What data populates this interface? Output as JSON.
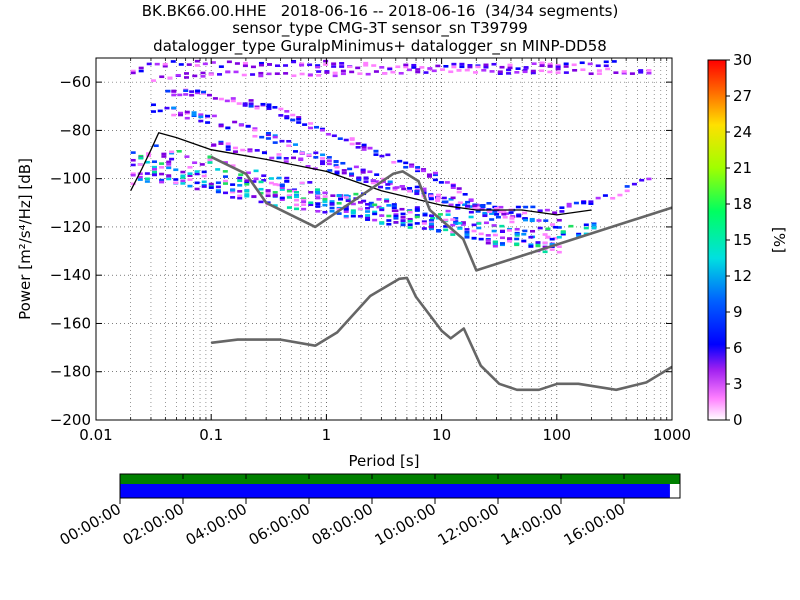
{
  "header": {
    "title_line1": "BK.BK66.00.HHE   2018-06-16 -- 2018-06-16  (34/34 segments)",
    "title_line2": "sensor_type CMG-3T sensor_sn T39799",
    "title_line3": "datalogger_type GuralpMinimus+ datalogger_sn MINP-DD58"
  },
  "chart_data": [
    {
      "type": "heatmap",
      "xlabel": "Period [s]",
      "ylabel": "Power [m²/s⁴/Hz] [dB]",
      "xscale": "log",
      "xlim": [
        0.01,
        1000
      ],
      "ylim": [
        -200,
        -50
      ],
      "x_ticks": [
        "0.01",
        "0.1",
        "1",
        "10",
        "100",
        "1000"
      ],
      "y_ticks": [
        "−60",
        "−80",
        "−100",
        "−120",
        "−140",
        "−160",
        "−180",
        "−200"
      ],
      "y_tick_values": [
        -60,
        -80,
        -100,
        -120,
        -140,
        -160,
        -180,
        -200
      ],
      "grid": true,
      "colorbar": {
        "label": "[%]",
        "range": [
          0,
          30
        ],
        "ticks": [
          "0",
          "3",
          "6",
          "9",
          "12",
          "15",
          "18",
          "21",
          "24",
          "27",
          "30"
        ]
      },
      "bands": [
        {
          "x": [
            0.02,
            0.03,
            0.04,
            0.1,
            1,
            5,
            10,
            30,
            100,
            300
          ],
          "y": [
            -55,
            -52,
            -52,
            -52,
            -52,
            -53,
            -53,
            -53,
            -52,
            -52
          ],
          "density": 5
        },
        {
          "x": [
            0.03,
            0.05,
            0.1,
            0.3,
            1,
            3,
            10,
            30,
            100,
            300,
            600
          ],
          "y": [
            -58,
            -57,
            -56,
            -56,
            -56,
            -55,
            -55,
            -55,
            -55,
            -55,
            -55
          ],
          "density": 4
        },
        {
          "x": [
            0.04,
            0.07,
            0.1,
            0.3,
            1,
            3,
            10,
            20,
            50
          ],
          "y": [
            -64,
            -64,
            -65,
            -70,
            -80,
            -90,
            -100,
            -110,
            -115
          ],
          "density": 6
        },
        {
          "x": [
            0.03,
            0.05,
            0.1,
            0.3,
            1,
            3,
            10,
            30,
            100
          ],
          "y": [
            -70,
            -72,
            -75,
            -82,
            -92,
            -100,
            -108,
            -116,
            -118
          ],
          "density": 7
        },
        {
          "x": [
            0.02,
            0.03,
            0.05,
            0.1,
            0.3,
            1,
            3,
            10,
            30,
            100,
            200
          ],
          "y": [
            -90,
            -88,
            -90,
            -93,
            -100,
            -105,
            -110,
            -115,
            -120,
            -122,
            -120
          ],
          "density": 10
        },
        {
          "x": [
            0.02,
            0.03,
            0.05,
            0.1,
            0.3,
            1,
            3,
            10,
            30,
            100
          ],
          "y": [
            -96,
            -94,
            -96,
            -100,
            -104,
            -108,
            -112,
            -118,
            -124,
            -126
          ],
          "density": 12
        },
        {
          "x": [
            0.02,
            0.03,
            0.05,
            0.1,
            0.3,
            1,
            3,
            10,
            30,
            100
          ],
          "y": [
            -100,
            -98,
            -100,
            -104,
            -108,
            -112,
            -116,
            -120,
            -126,
            -128
          ],
          "density": 9
        },
        {
          "x": [
            0.1,
            0.3,
            1,
            3,
            10,
            30,
            100,
            300,
            600
          ],
          "y": [
            -85,
            -90,
            -95,
            -102,
            -108,
            -113,
            -112,
            -106,
            -100
          ],
          "density": 6
        }
      ],
      "series": [
        {
          "x": [
            0.02,
            0.025,
            0.03,
            0.035,
            0.05,
            0.1,
            0.3,
            1,
            3,
            10,
            20,
            50,
            100,
            200
          ],
          "y": [
            -105,
            -96,
            -88,
            -81,
            -83,
            -88,
            -92,
            -97,
            -105,
            -111,
            -113,
            -113,
            -115,
            -113
          ]
        },
        {
          "x": [
            0.1,
            0.2,
            0.3,
            0.8,
            3.8,
            4.6,
            6.3,
            7.9,
            15.4,
            20,
            1000
          ],
          "y": [
            -91,
            -98,
            -110,
            -120,
            -98,
            -97,
            -101,
            -113,
            -125,
            -138,
            -112
          ]
        },
        {
          "x": [
            0.1,
            0.17,
            0.4,
            0.8,
            1.24,
            2.4,
            4.3,
            5,
            6,
            10,
            12,
            15.6,
            21.9,
            31.6,
            45,
            70,
            101,
            154,
            328,
            600,
            1000
          ],
          "y": [
            -168,
            -166.7,
            -166.7,
            -169.2,
            -163.7,
            -148.6,
            -141.5,
            -141.1,
            -149,
            -163,
            -166.2,
            -162.1,
            -177.5,
            -185,
            -187.5,
            -187.5,
            -185,
            -185,
            -187.5,
            -184.4,
            -178
          ]
        }
      ]
    },
    {
      "type": "bar",
      "x_ticks": [
        "00:00:00",
        "02:00:00",
        "04:00:00",
        "06:00:00",
        "08:00:00",
        "10:00:00",
        "12:00:00",
        "14:00:00",
        "16:00:00"
      ],
      "series": [
        {
          "color": "#008000",
          "coverage": 1.0
        },
        {
          "color": "#0000ff",
          "coverage": 0.982
        }
      ]
    }
  ],
  "colors": {
    "frame": "#000000",
    "reference": "#666666",
    "median": "#000000",
    "grid": "#000000"
  }
}
